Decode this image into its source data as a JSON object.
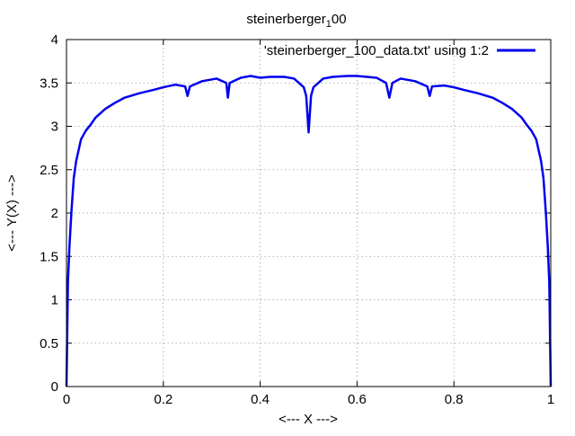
{
  "chart_data": {
    "type": "line",
    "title_main": "steinerberger",
    "title_sub": "1",
    "title_tail": "00",
    "xlabel": "<--- X --->",
    "ylabel": "<--- Y(X) --->",
    "xlim": [
      0,
      1
    ],
    "ylim": [
      0,
      4
    ],
    "xticks": [
      0,
      0.2,
      0.4,
      0.6,
      0.8,
      1
    ],
    "xtick_labels": [
      "0",
      "0.2",
      "0.4",
      "0.6",
      "0.8",
      "1"
    ],
    "yticks": [
      0,
      0.5,
      1,
      1.5,
      2,
      2.5,
      3,
      3.5,
      4
    ],
    "ytick_labels": [
      "0",
      "0.5",
      "1",
      "1.5",
      "2",
      "2.5",
      "3",
      "3.5",
      "4"
    ],
    "grid": true,
    "legend_position": "top-right",
    "series": [
      {
        "name": "'steinerberger_100_data.txt' using 1:2",
        "color": "#0000ee",
        "x": [
          0,
          0.003,
          0.006,
          0.01,
          0.015,
          0.02,
          0.03,
          0.04,
          0.05,
          0.06,
          0.08,
          0.1,
          0.12,
          0.15,
          0.18,
          0.2,
          0.225,
          0.245,
          0.25,
          0.255,
          0.28,
          0.31,
          0.33,
          0.3333,
          0.337,
          0.36,
          0.38,
          0.4,
          0.42,
          0.45,
          0.47,
          0.49,
          0.495,
          0.5,
          0.505,
          0.51,
          0.53,
          0.55,
          0.58,
          0.6,
          0.62,
          0.64,
          0.66,
          0.6667,
          0.673,
          0.69,
          0.72,
          0.745,
          0.75,
          0.755,
          0.78,
          0.8,
          0.82,
          0.85,
          0.88,
          0.9,
          0.92,
          0.94,
          0.95,
          0.96,
          0.97,
          0.98,
          0.985,
          0.99,
          0.994,
          0.997,
          1
        ],
        "y": [
          0,
          1.2,
          1.6,
          2.0,
          2.4,
          2.6,
          2.85,
          2.95,
          3.02,
          3.1,
          3.2,
          3.27,
          3.33,
          3.38,
          3.42,
          3.45,
          3.48,
          3.46,
          3.35,
          3.46,
          3.52,
          3.55,
          3.5,
          3.33,
          3.5,
          3.56,
          3.58,
          3.56,
          3.57,
          3.57,
          3.55,
          3.45,
          3.35,
          2.93,
          3.35,
          3.45,
          3.55,
          3.57,
          3.58,
          3.58,
          3.57,
          3.56,
          3.5,
          3.33,
          3.5,
          3.55,
          3.52,
          3.46,
          3.35,
          3.46,
          3.47,
          3.45,
          3.42,
          3.38,
          3.33,
          3.27,
          3.2,
          3.1,
          3.02,
          2.95,
          2.85,
          2.6,
          2.4,
          2.0,
          1.6,
          1.2,
          0
        ]
      }
    ]
  }
}
